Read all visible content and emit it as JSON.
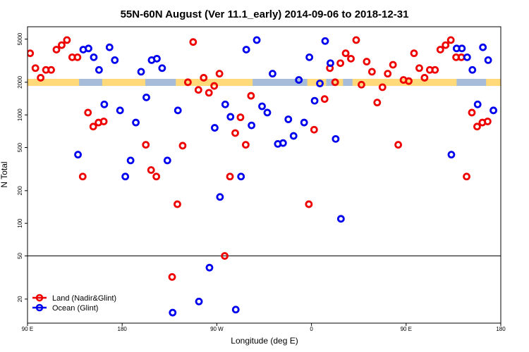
{
  "chart_data": {
    "type": "scatter",
    "title": "55N-60N August (Ver 11.1_early)   2014-09-06 to 2018-12-31",
    "xlabel": "Longitude (deg E)",
    "ylabel": "N Total",
    "x_ticks": [
      {
        "value": 90,
        "label": "90 E"
      },
      {
        "value": 180,
        "label": "180"
      },
      {
        "value": 270,
        "label": "90 W"
      },
      {
        "value": 360,
        "label": "0"
      },
      {
        "value": 450,
        "label": "90 E"
      },
      {
        "value": 540,
        "label": "180"
      }
    ],
    "y_ticks": [
      {
        "value": 20,
        "label": "20"
      },
      {
        "value": 50,
        "label": "50"
      },
      {
        "value": 100,
        "label": "100"
      },
      {
        "value": 200,
        "label": "200"
      },
      {
        "value": 500,
        "label": "500"
      },
      {
        "value": 1000,
        "label": "1000"
      },
      {
        "value": 2000,
        "label": "2000"
      },
      {
        "value": 5000,
        "label": "5000"
      }
    ],
    "xlim": [
      90,
      540
    ],
    "ylim": [
      12,
      6500
    ],
    "yscale": "log",
    "reference_line": 50,
    "band": {
      "y_min": 1850,
      "y_max": 2150,
      "land_color": "#ffd97a",
      "ocean_color": "#a7bcd8"
    },
    "legend_position": "bottom-left",
    "series": [
      {
        "name": "Land (Nadir&Glint)",
        "color": "#ee0000",
        "points": [
          [
            92.5,
            3700
          ],
          [
            97.5,
            2700
          ],
          [
            102.5,
            2200
          ],
          [
            107.5,
            2600
          ],
          [
            112.5,
            2600
          ],
          [
            117.5,
            4000
          ],
          [
            122.5,
            4400
          ],
          [
            127.5,
            4900
          ],
          [
            132.5,
            3400
          ],
          [
            137.5,
            3400
          ],
          [
            142.5,
            270
          ],
          [
            147.5,
            1050
          ],
          [
            152.5,
            780
          ],
          [
            157.5,
            850
          ],
          [
            162.5,
            870
          ],
          [
            202.5,
            530
          ],
          [
            207.5,
            310
          ],
          [
            212.5,
            270
          ],
          [
            227.5,
            32
          ],
          [
            232.5,
            150
          ],
          [
            237.5,
            520
          ],
          [
            242.5,
            2000
          ],
          [
            247.5,
            4700
          ],
          [
            252.5,
            1700
          ],
          [
            257.5,
            2200
          ],
          [
            262.5,
            1600
          ],
          [
            267.5,
            1850
          ],
          [
            272.5,
            2400
          ],
          [
            277.5,
            50
          ],
          [
            282.5,
            270
          ],
          [
            287.5,
            680
          ],
          [
            292.5,
            950
          ],
          [
            297.5,
            530
          ],
          [
            302.5,
            1500
          ],
          [
            357.5,
            150
          ],
          [
            362.5,
            730
          ],
          [
            372.5,
            1400
          ],
          [
            377.5,
            2700
          ],
          [
            382.5,
            2000
          ],
          [
            387.5,
            3000
          ],
          [
            392.5,
            3700
          ],
          [
            397.5,
            3300
          ],
          [
            402.5,
            4900
          ],
          [
            407.5,
            1900
          ],
          [
            412.5,
            3100
          ],
          [
            417.5,
            2500
          ],
          [
            422.5,
            1300
          ],
          [
            427.5,
            1800
          ],
          [
            432.5,
            2400
          ],
          [
            437.5,
            2900
          ],
          [
            442.5,
            530
          ],
          [
            447.5,
            2100
          ],
          [
            452.5,
            2050
          ],
          [
            457.5,
            3700
          ],
          [
            462.5,
            2700
          ],
          [
            467.5,
            2200
          ],
          [
            472.5,
            2600
          ],
          [
            477.5,
            2600
          ],
          [
            482.5,
            4000
          ],
          [
            487.5,
            4400
          ],
          [
            492.5,
            4900
          ],
          [
            497.5,
            3400
          ],
          [
            502.5,
            3400
          ],
          [
            507.5,
            270
          ],
          [
            512.5,
            1050
          ],
          [
            517.5,
            780
          ],
          [
            522.5,
            850
          ],
          [
            527.5,
            870
          ]
        ]
      },
      {
        "name": "Ocean (Glint)",
        "color": "#0000ee",
        "points": [
          [
            138,
            430
          ],
          [
            143,
            4000
          ],
          [
            148,
            4100
          ],
          [
            153,
            3400
          ],
          [
            158,
            2600
          ],
          [
            163,
            1250
          ],
          [
            168,
            4200
          ],
          [
            173,
            3200
          ],
          [
            178,
            1100
          ],
          [
            183,
            270
          ],
          [
            188,
            380
          ],
          [
            193,
            850
          ],
          [
            198,
            2500
          ],
          [
            203,
            1450
          ],
          [
            208,
            3200
          ],
          [
            213,
            3300
          ],
          [
            218,
            2700
          ],
          [
            223,
            380
          ],
          [
            228,
            15
          ],
          [
            233,
            1100
          ],
          [
            253,
            19
          ],
          [
            263,
            39
          ],
          [
            268,
            760
          ],
          [
            273,
            175
          ],
          [
            278,
            1250
          ],
          [
            283,
            960
          ],
          [
            288,
            16
          ],
          [
            293,
            270
          ],
          [
            298,
            4000
          ],
          [
            303,
            800
          ],
          [
            308,
            4900
          ],
          [
            313,
            1200
          ],
          [
            318,
            1050
          ],
          [
            323,
            2400
          ],
          [
            328,
            540
          ],
          [
            333,
            550
          ],
          [
            338,
            910
          ],
          [
            343,
            640
          ],
          [
            348,
            2100
          ],
          [
            353,
            850
          ],
          [
            358,
            3400
          ],
          [
            363,
            1350
          ],
          [
            368,
            1950
          ],
          [
            373,
            4800
          ],
          [
            378,
            3000
          ],
          [
            383,
            600
          ],
          [
            388,
            110
          ],
          [
            493,
            430
          ],
          [
            498,
            4100
          ],
          [
            503,
            4100
          ],
          [
            508,
            3400
          ],
          [
            513,
            2600
          ],
          [
            518,
            1250
          ],
          [
            523,
            4200
          ],
          [
            528,
            3200
          ],
          [
            533,
            1100
          ]
        ]
      }
    ]
  }
}
